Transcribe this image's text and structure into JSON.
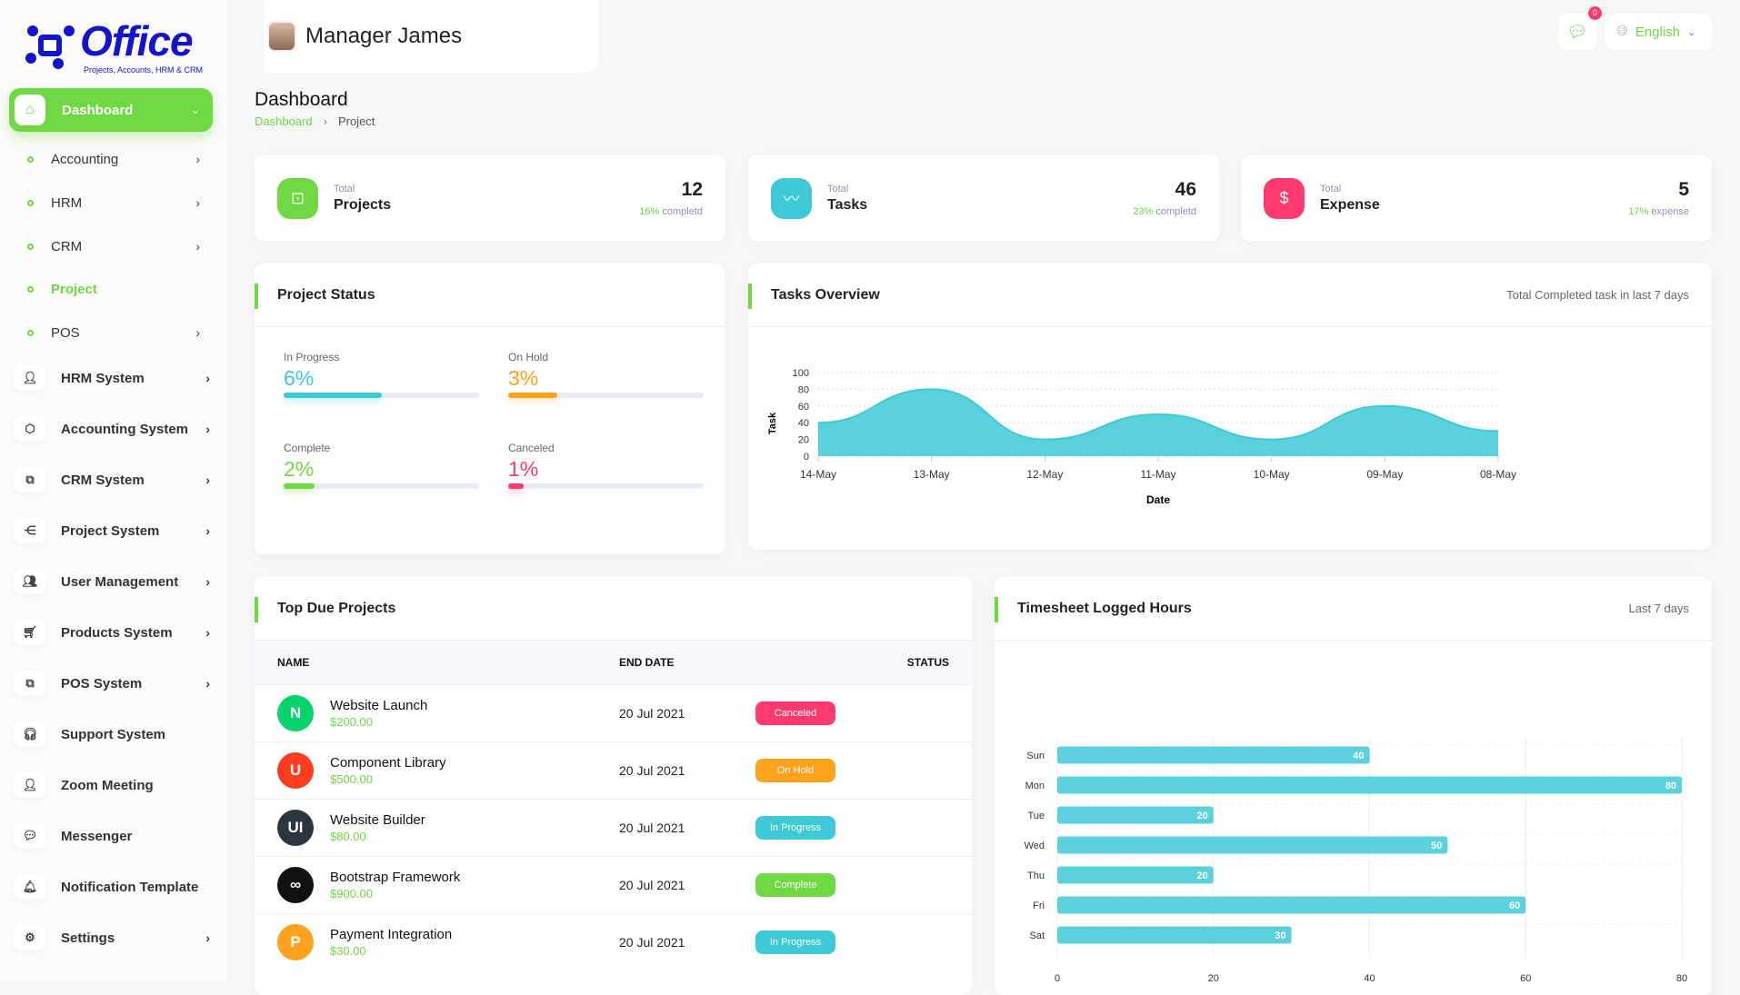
{
  "logo": {
    "text": "Office",
    "tagline": "Projects, Accounts, HRM & CRM"
  },
  "header": {
    "user_name": "Manager James",
    "notification_count": "0",
    "language": "English"
  },
  "sidebar": {
    "dashboard": "Dashboard",
    "sub_items": [
      {
        "label": "Accounting",
        "arrow": true
      },
      {
        "label": "HRM",
        "arrow": true
      },
      {
        "label": "CRM",
        "arrow": true
      },
      {
        "label": "Project",
        "arrow": false,
        "active": true
      },
      {
        "label": "POS",
        "arrow": true
      }
    ],
    "items": [
      {
        "label": "HRM System",
        "icon": "user-icon",
        "glyph": "👤",
        "arrow": true
      },
      {
        "label": "Accounting System",
        "icon": "box-icon",
        "glyph": "⬡",
        "arrow": true
      },
      {
        "label": "CRM System",
        "icon": "layers-icon",
        "glyph": "⧉",
        "arrow": true
      },
      {
        "label": "Project System",
        "icon": "share-icon",
        "glyph": "⋲",
        "arrow": true
      },
      {
        "label": "User Management",
        "icon": "users-icon",
        "glyph": "👥",
        "arrow": true
      },
      {
        "label": "Products System",
        "icon": "cart-icon",
        "glyph": "🛒",
        "arrow": true
      },
      {
        "label": "POS System",
        "icon": "layers-icon",
        "glyph": "⧉",
        "arrow": true
      },
      {
        "label": "Support System",
        "icon": "headphones-icon",
        "glyph": "🎧",
        "arrow": false
      },
      {
        "label": "Zoom Meeting",
        "icon": "user-check-icon",
        "glyph": "👤",
        "arrow": false
      },
      {
        "label": "Messenger",
        "icon": "message-icon",
        "glyph": "💬",
        "arrow": false
      },
      {
        "label": "Notification Template",
        "icon": "notification-icon",
        "glyph": "🔔",
        "arrow": false
      },
      {
        "label": "Settings",
        "icon": "gear-icon",
        "glyph": "⚙",
        "arrow": true
      }
    ]
  },
  "page": {
    "title": "Dashboard",
    "breadcrumb": [
      "Dashboard",
      "Project"
    ]
  },
  "stats": [
    {
      "label_top": "Total",
      "label": "Projects",
      "value": "12",
      "pct": "16%",
      "suffix": "completd",
      "color": "#6fd943",
      "icon": "cast-icon",
      "glyph": "⊡"
    },
    {
      "label_top": "Total",
      "label": "Tasks",
      "value": "46",
      "pct": "23%",
      "suffix": "completd",
      "color": "#3ec9d6",
      "icon": "activity-icon",
      "glyph": "〰"
    },
    {
      "label_top": "Total",
      "label": "Expense",
      "value": "5",
      "pct": "17%",
      "suffix": "expense",
      "color": "#ff3a6e",
      "icon": "clipboard-icon",
      "glyph": "$"
    }
  ],
  "project_status": {
    "title": "Project Status",
    "items": [
      {
        "label": "In Progress",
        "value": "6%",
        "fill": 0.5,
        "color": "#3ec9d6"
      },
      {
        "label": "On Hold",
        "value": "3%",
        "fill": 0.25,
        "color": "#ffa21d"
      },
      {
        "label": "Complete",
        "value": "2%",
        "fill": 0.16,
        "color": "#6fd943"
      },
      {
        "label": "Canceled",
        "value": "1%",
        "fill": 0.08,
        "color": "#ff3a6e"
      }
    ]
  },
  "tasks_overview": {
    "title": "Tasks Overview",
    "subtitle": "Total Completed task in last 7 days"
  },
  "top_due": {
    "title": "Top Due Projects",
    "columns": [
      "NAME",
      "END DATE",
      "STATUS"
    ],
    "rows": [
      {
        "name": "Website Launch",
        "price": "$200.00",
        "date": "20 Jul 2021",
        "status": "Canceled",
        "status_color": "#ff3a6e",
        "avatar": "N",
        "avatar_color": "#06d46b"
      },
      {
        "name": "Component Library",
        "price": "$500.00",
        "date": "20 Jul 2021",
        "status": "On Hold",
        "status_color": "#ffa21d",
        "avatar": "U",
        "avatar_color": "#ff3d1f"
      },
      {
        "name": "Website Builder",
        "price": "$80.00",
        "date": "20 Jul 2021",
        "status": "In Progress",
        "status_color": "#3ec9d6",
        "avatar": "UI",
        "avatar_color": "#2c3440"
      },
      {
        "name": "Bootstrap Framework",
        "price": "$900.00",
        "date": "20 Jul 2021",
        "status": "Complete",
        "status_color": "#6fd943",
        "avatar": "∞",
        "avatar_color": "#111"
      },
      {
        "name": "Payment Integration",
        "price": "$30.00",
        "date": "20 Jul 2021",
        "status": "In Progress",
        "status_color": "#3ec9d6",
        "avatar": "P",
        "avatar_color": "#ffa21d"
      }
    ]
  },
  "timesheet": {
    "title": "Timesheet Logged Hours",
    "subtitle": "Last 7 days"
  },
  "chart_data": [
    {
      "type": "area",
      "xlabel": "Date",
      "ylabel": "Task",
      "categories": [
        "14-May",
        "13-May",
        "12-May",
        "11-May",
        "10-May",
        "09-May",
        "08-May"
      ],
      "values": [
        40,
        80,
        20,
        50,
        20,
        60,
        30
      ],
      "ylim": [
        0,
        100
      ],
      "yticks": [
        0,
        20,
        40,
        60,
        80,
        100
      ],
      "grid": true,
      "color": "#3ec9d6"
    },
    {
      "type": "bar",
      "orientation": "horizontal",
      "categories": [
        "Sun",
        "Mon",
        "Tue",
        "Wed",
        "Thu",
        "Fri",
        "Sat"
      ],
      "values": [
        40,
        80,
        20,
        50,
        20,
        60,
        30
      ],
      "xlim": [
        0,
        80
      ],
      "xticks": [
        0,
        20,
        40,
        60,
        80
      ],
      "grid": true,
      "color": "#5bd1dc"
    }
  ]
}
